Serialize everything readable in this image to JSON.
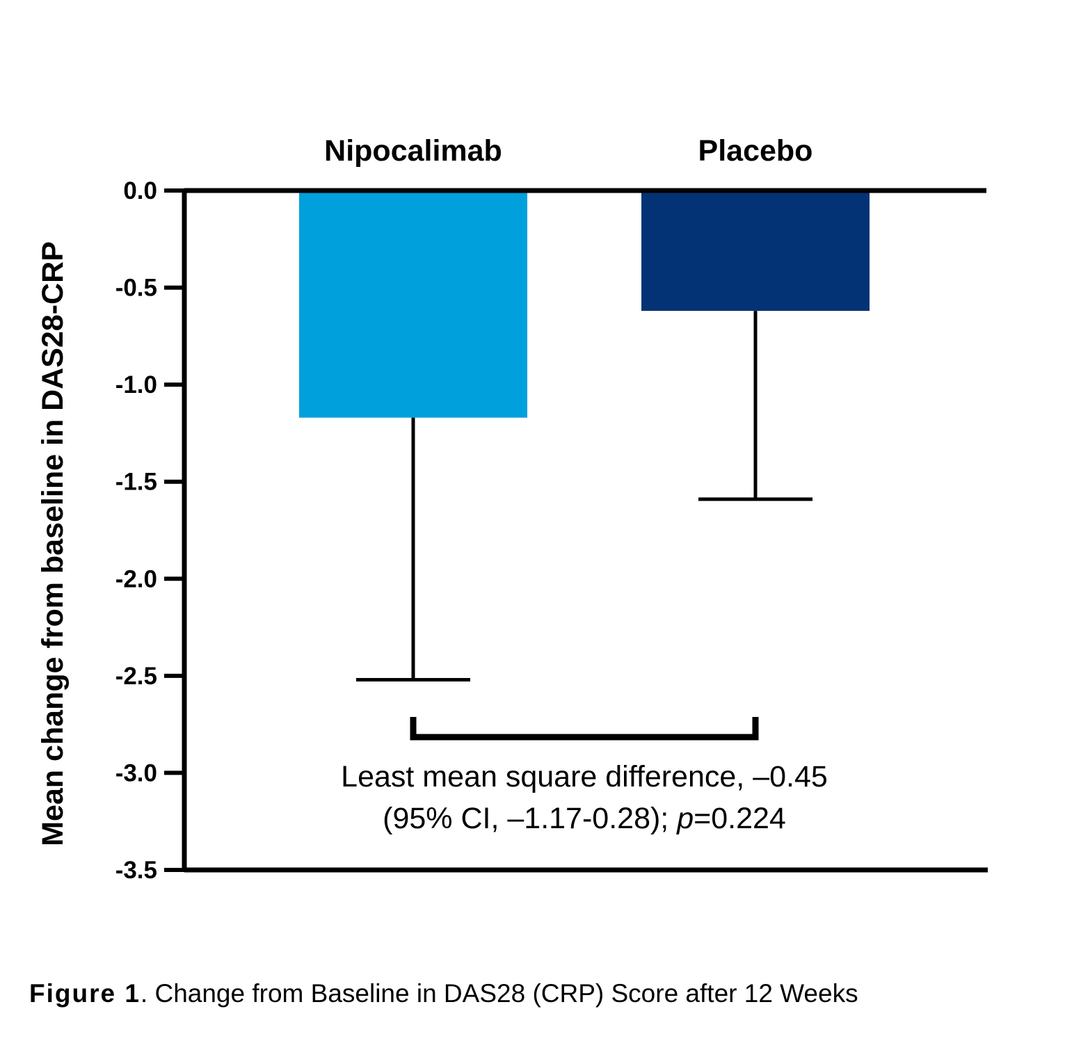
{
  "chart_data": {
    "type": "bar",
    "categories": [
      "Nipocalimab",
      "Placebo"
    ],
    "values": [
      -1.17,
      -0.62
    ],
    "error_lower": [
      -2.52,
      -1.59
    ],
    "colors": [
      "#00a0dd",
      "#033375"
    ],
    "ylabel": "Mean change from baseline in DAS28-CRP",
    "ylim": [
      -3.5,
      0.0
    ],
    "yticks": [
      0.0,
      -0.5,
      -1.0,
      -1.5,
      -2.0,
      -2.5,
      -3.0,
      -3.5
    ],
    "ytick_labels": [
      "0.0",
      "-0.5",
      "-1.0",
      "-1.5",
      "-2.0",
      "-2.5",
      "-3.0",
      "-3.5"
    ],
    "category_position": "top",
    "comparison_bracket": [
      "Nipocalimab",
      "Placebo"
    ],
    "annotation": {
      "line1": "Least mean square difference, –0.45",
      "line2_pre": "(95% CI, –1.17-0.28); ",
      "line2_p": "p",
      "line2_post": "=0.224"
    }
  },
  "caption": {
    "figure_label": "Figure 1",
    "text": ". Change from Baseline in DAS28 (CRP) Score after 12 Weeks"
  }
}
